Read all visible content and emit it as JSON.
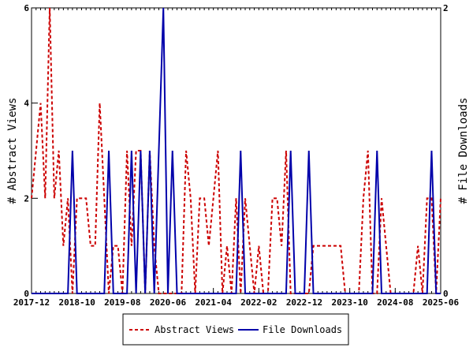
{
  "chart_data": {
    "type": "line",
    "y_left_label": "# Abstract Views",
    "y_right_label": "# File Downloads",
    "y_left_lim": [
      0,
      6
    ],
    "y_right_lim": [
      0,
      2
    ],
    "y_left_ticks": [
      "0",
      "2",
      "4",
      "6"
    ],
    "y_right_ticks": [
      "0",
      "2"
    ],
    "x_tick_labels": [
      "2017-12",
      "2018-10",
      "2019-08",
      "2020-06",
      "2021-04",
      "2022-02",
      "2022-12",
      "2023-10",
      "2024-08",
      "2025-06"
    ],
    "x_start_month": "2017-12",
    "x_end_month": "2025-08",
    "legend": [
      "Abstract Views",
      "File Downloads"
    ],
    "colors": {
      "abstract_views": "#cc0000",
      "file_downloads": "#0000aa"
    },
    "series": [
      {
        "name": "Abstract Views",
        "axis": "left",
        "values": [
          2,
          3,
          4,
          2,
          6,
          2,
          3,
          1,
          2,
          0,
          2,
          2,
          2,
          1,
          1,
          4,
          2,
          0,
          1,
          1,
          0,
          3,
          1,
          3,
          3,
          0,
          3,
          1,
          0,
          0,
          0,
          0,
          0,
          0,
          3,
          2,
          0,
          2,
          2,
          1,
          2,
          3,
          0,
          1,
          0,
          2,
          0,
          2,
          1,
          0,
          1,
          0,
          0,
          2,
          2,
          1,
          3,
          0,
          0,
          0,
          0,
          0,
          1,
          1,
          1,
          1,
          1,
          1,
          1,
          0,
          0,
          0,
          0,
          2,
          3,
          0,
          0,
          2,
          1,
          0,
          0,
          0,
          0,
          0,
          0,
          1,
          0,
          2,
          2,
          0,
          2
        ]
      },
      {
        "name": "File Downloads",
        "axis": "right",
        "values": [
          0,
          0,
          0,
          0,
          0,
          0,
          0,
          0,
          0,
          1,
          0,
          0,
          0,
          0,
          0,
          0,
          0,
          1,
          0,
          0,
          0,
          0,
          1,
          0,
          1,
          0,
          1,
          0,
          1,
          2,
          0,
          1,
          0,
          0,
          0,
          0,
          0,
          0,
          0,
          0,
          0,
          0,
          0,
          0,
          0,
          0,
          1,
          0,
          0,
          0,
          0,
          0,
          0,
          0,
          0,
          0,
          0,
          1,
          0,
          0,
          0,
          1,
          0,
          0,
          0,
          0,
          0,
          0,
          0,
          0,
          0,
          0,
          0,
          0,
          0,
          0,
          1,
          0,
          0,
          0,
          0,
          0,
          0,
          0,
          0,
          0,
          0,
          0,
          1,
          0,
          0
        ]
      }
    ]
  }
}
